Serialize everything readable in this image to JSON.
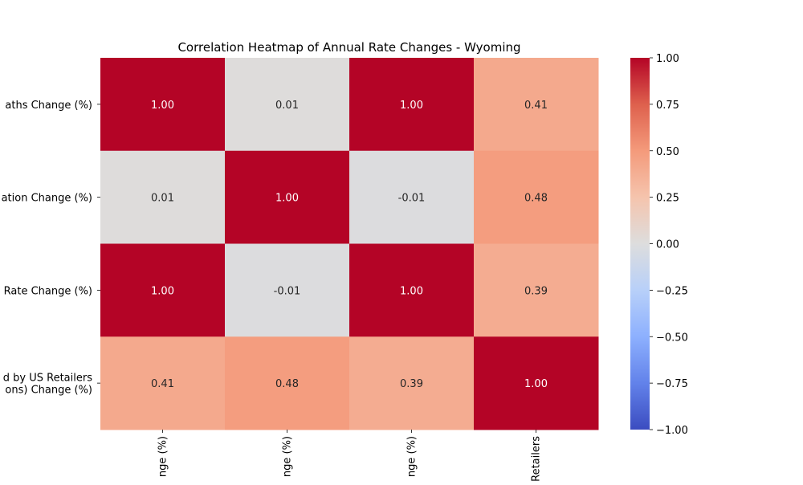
{
  "chart_data": {
    "type": "heatmap",
    "title": "Correlation Heatmap of Annual Rate Changes - Wyoming",
    "row_labels": [
      [
        "aths Change (%)"
      ],
      [
        "ation Change (%)"
      ],
      [
        "Rate Change (%)"
      ],
      [
        "d by US Retailers",
        "ons) Change (%)"
      ]
    ],
    "col_labels": [
      "nge (%)",
      "nge (%)",
      "nge (%)",
      "Retailers"
    ],
    "values": [
      [
        1.0,
        0.01,
        1.0,
        0.41
      ],
      [
        0.01,
        1.0,
        -0.01,
        0.48
      ],
      [
        1.0,
        -0.01,
        1.0,
        0.39
      ],
      [
        0.41,
        0.48,
        0.39,
        1.0
      ]
    ],
    "value_labels": [
      [
        "1.00",
        "0.01",
        "1.00",
        "0.41"
      ],
      [
        "0.01",
        "1.00",
        "-0.01",
        "0.48"
      ],
      [
        "1.00",
        "-0.01",
        "1.00",
        "0.39"
      ],
      [
        "0.41",
        "0.48",
        "0.39",
        "1.00"
      ]
    ],
    "colormap": "coolwarm",
    "vmin": -1.0,
    "vmax": 1.0,
    "colorbar_ticks": [
      1.0,
      0.75,
      0.5,
      0.25,
      0.0,
      -0.25,
      -0.5,
      -0.75,
      -1.0
    ],
    "colorbar_tick_labels": [
      "1.00",
      "0.75",
      "0.50",
      "0.25",
      "0.00",
      "−0.25",
      "−0.50",
      "−0.75",
      "−1.00"
    ],
    "colors": {
      "low": "#3b4cc0",
      "mid": "#dddddd",
      "high": "#b40426",
      "text_dark": "#262626",
      "text_light": "#ffffff"
    }
  }
}
